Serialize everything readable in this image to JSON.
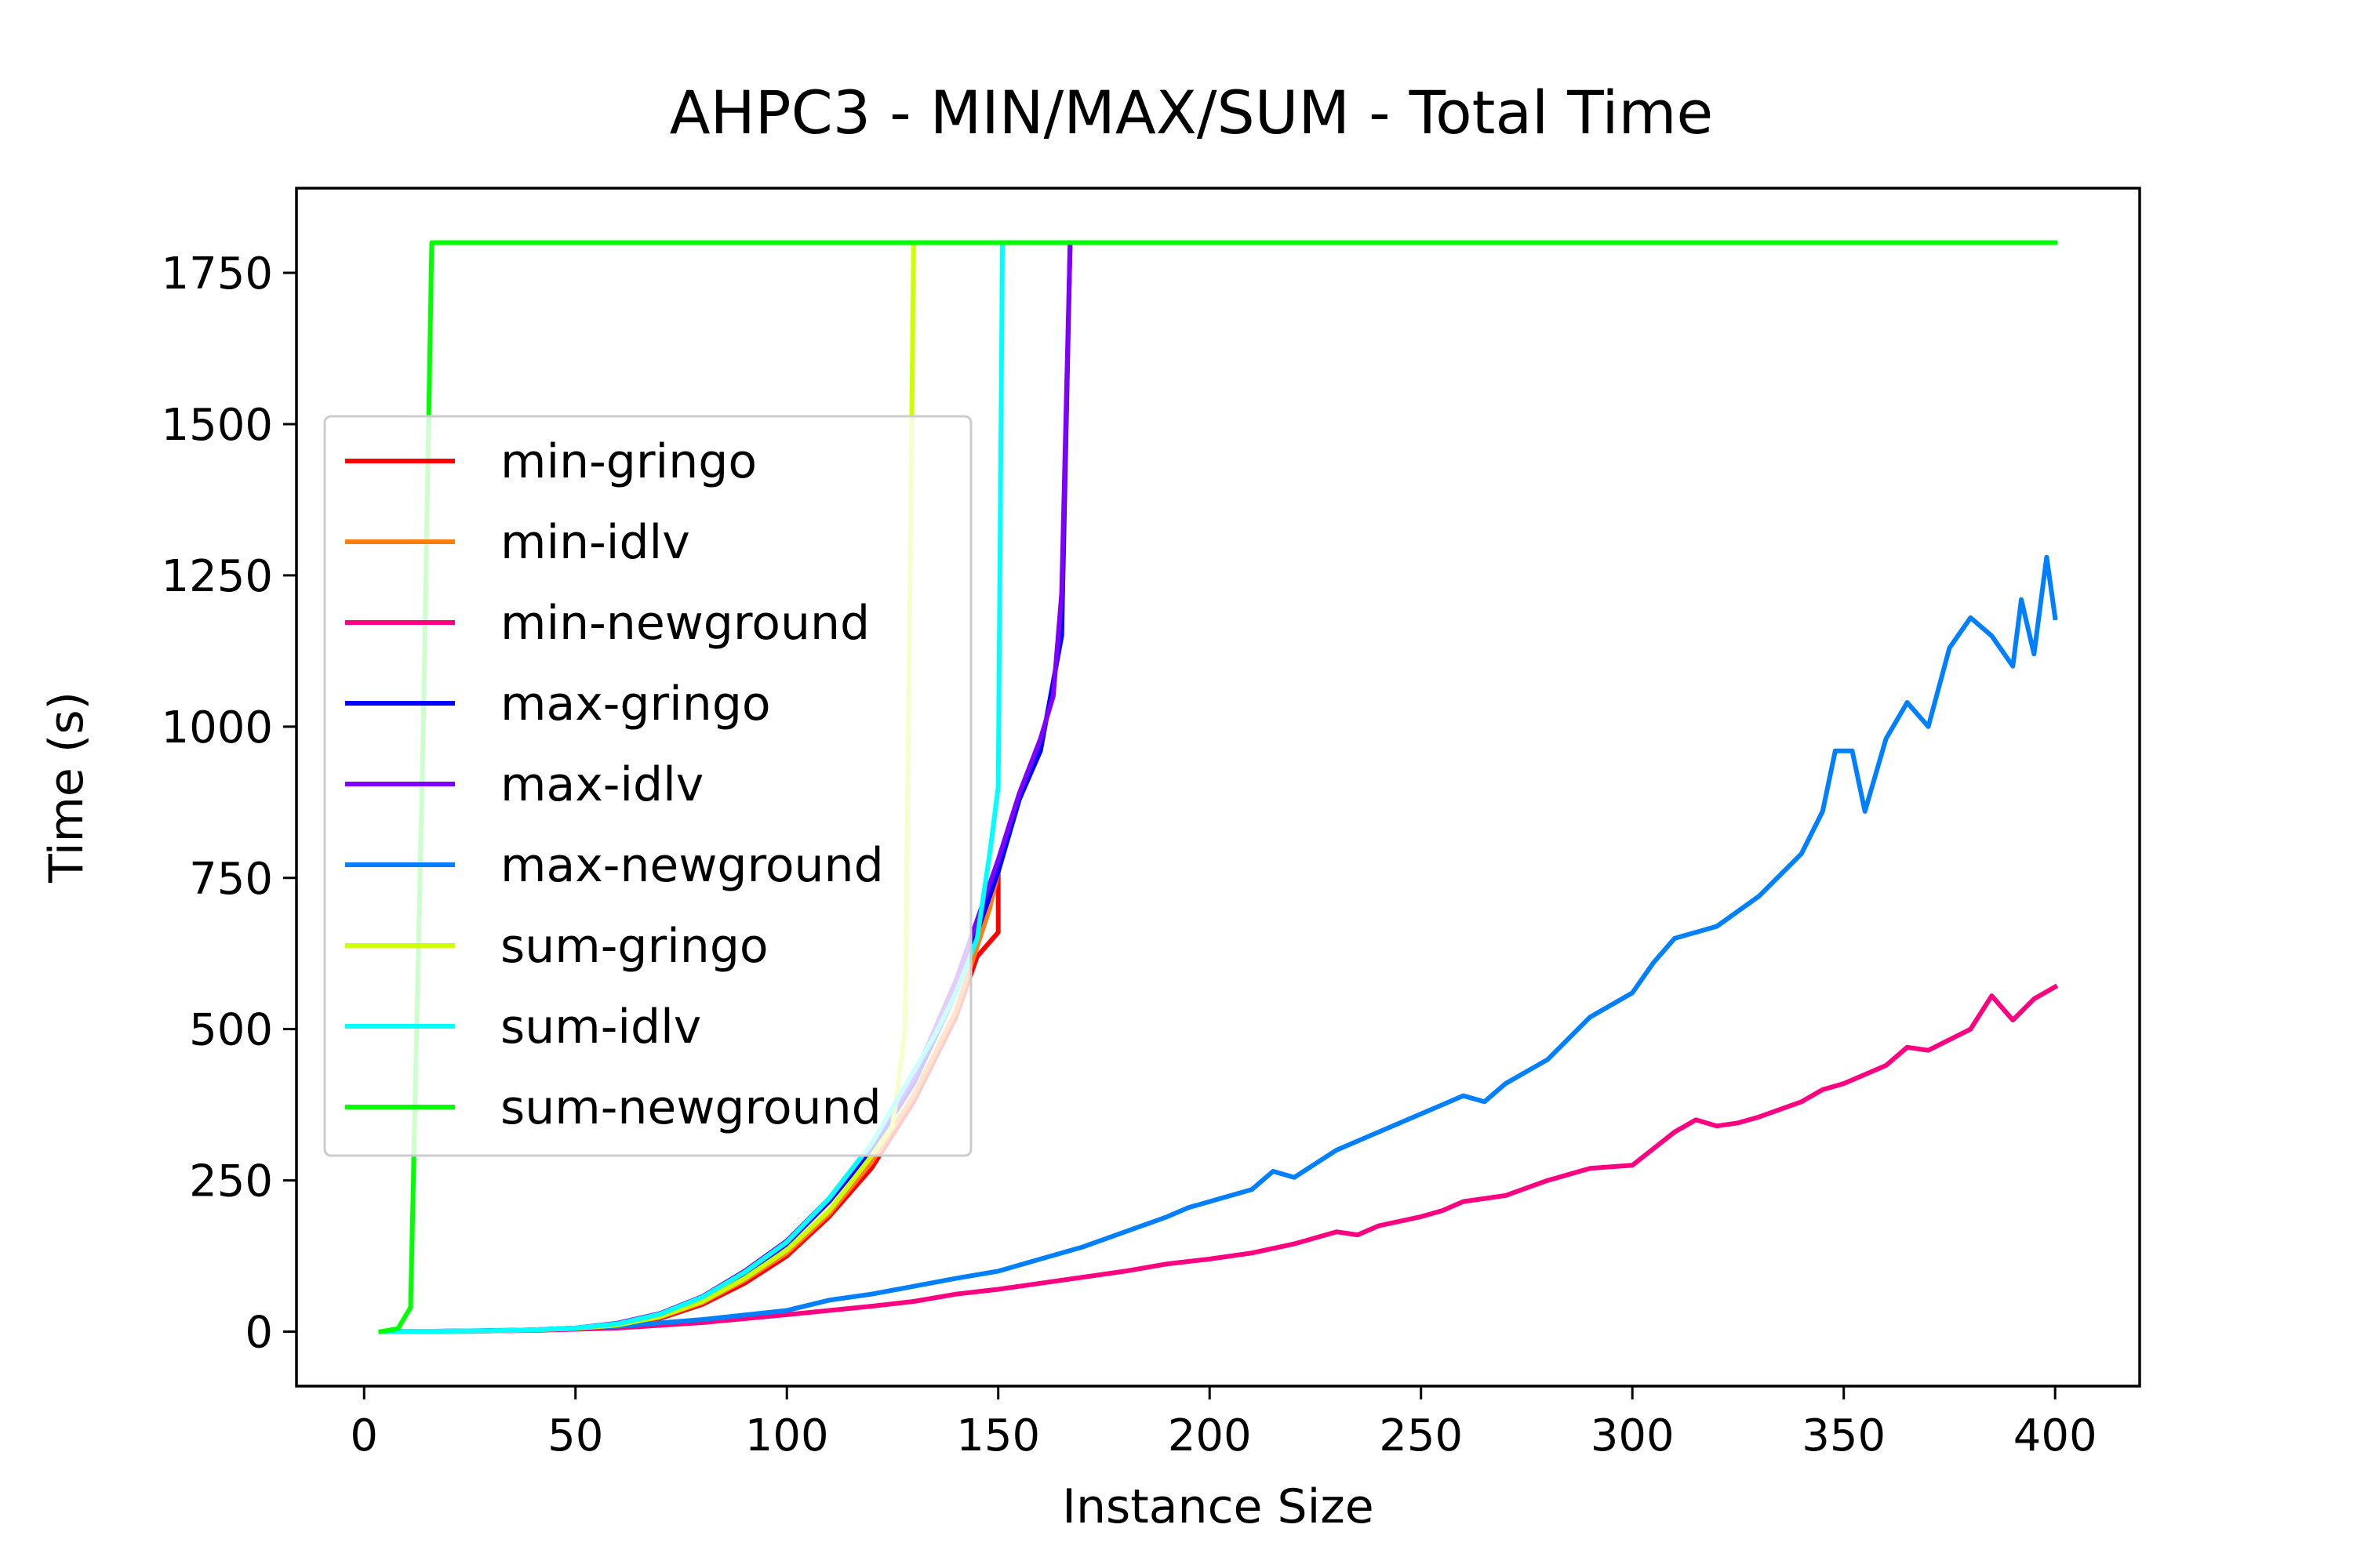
{
  "chart_data": {
    "type": "line",
    "title": "AHPC3 - MIN/MAX/SUM - Total Time",
    "xlabel": "Instance Size",
    "ylabel": "Time (s)",
    "xlim": [
      -16,
      420
    ],
    "ylim": [
      -90,
      1890
    ],
    "xticks": [
      0,
      50,
      100,
      150,
      200,
      250,
      300,
      350,
      400
    ],
    "yticks": [
      0,
      250,
      500,
      750,
      1000,
      1250,
      1500,
      1750
    ],
    "grid": false,
    "legend_position": "center-left",
    "series": [
      {
        "name": "min-gringo",
        "color": "#ff0000",
        "points": [
          [
            4,
            0
          ],
          [
            10,
            0.3
          ],
          [
            20,
            0.6
          ],
          [
            30,
            1.2
          ],
          [
            40,
            2.5
          ],
          [
            50,
            5
          ],
          [
            60,
            10
          ],
          [
            70,
            22
          ],
          [
            80,
            45
          ],
          [
            90,
            80
          ],
          [
            100,
            125
          ],
          [
            110,
            190
          ],
          [
            120,
            270
          ],
          [
            130,
            380
          ],
          [
            140,
            520
          ],
          [
            145,
            620
          ],
          [
            150,
            660
          ],
          [
            150,
            760
          ]
        ]
      },
      {
        "name": "min-idlv",
        "color": "#ff7f0e",
        "points": [
          [
            4,
            0
          ],
          [
            10,
            0.3
          ],
          [
            20,
            0.6
          ],
          [
            30,
            1.2
          ],
          [
            40,
            2.5
          ],
          [
            50,
            5
          ],
          [
            60,
            10
          ],
          [
            70,
            24
          ],
          [
            80,
            48
          ],
          [
            90,
            85
          ],
          [
            100,
            130
          ],
          [
            110,
            195
          ],
          [
            120,
            280
          ],
          [
            130,
            390
          ],
          [
            140,
            530
          ],
          [
            148,
            700
          ],
          [
            150,
            760
          ]
        ]
      },
      {
        "name": "min-newground",
        "color": "#ff0080",
        "points": [
          [
            4,
            0
          ],
          [
            20,
            0.5
          ],
          [
            40,
            2
          ],
          [
            60,
            6
          ],
          [
            80,
            15
          ],
          [
            100,
            28
          ],
          [
            120,
            42
          ],
          [
            130,
            50
          ],
          [
            140,
            62
          ],
          [
            150,
            70
          ],
          [
            160,
            80
          ],
          [
            170,
            90
          ],
          [
            180,
            100
          ],
          [
            190,
            112
          ],
          [
            200,
            120
          ],
          [
            210,
            130
          ],
          [
            220,
            145
          ],
          [
            230,
            165
          ],
          [
            235,
            160
          ],
          [
            240,
            175
          ],
          [
            250,
            190
          ],
          [
            255,
            200
          ],
          [
            260,
            215
          ],
          [
            270,
            225
          ],
          [
            280,
            250
          ],
          [
            290,
            270
          ],
          [
            300,
            275
          ],
          [
            310,
            330
          ],
          [
            315,
            350
          ],
          [
            320,
            340
          ],
          [
            325,
            345
          ],
          [
            330,
            355
          ],
          [
            340,
            380
          ],
          [
            345,
            400
          ],
          [
            350,
            410
          ],
          [
            360,
            440
          ],
          [
            365,
            470
          ],
          [
            370,
            465
          ],
          [
            380,
            500
          ],
          [
            385,
            555
          ],
          [
            390,
            515
          ],
          [
            395,
            550
          ],
          [
            400,
            570
          ]
        ]
      },
      {
        "name": "max-gringo",
        "color": "#0000ff",
        "points": [
          [
            4,
            0
          ],
          [
            10,
            0.3
          ],
          [
            20,
            0.8
          ],
          [
            30,
            1.5
          ],
          [
            40,
            3
          ],
          [
            50,
            6
          ],
          [
            60,
            12
          ],
          [
            70,
            28
          ],
          [
            80,
            55
          ],
          [
            90,
            95
          ],
          [
            100,
            145
          ],
          [
            110,
            215
          ],
          [
            120,
            300
          ],
          [
            130,
            410
          ],
          [
            140,
            560
          ],
          [
            150,
            760
          ],
          [
            155,
            880
          ],
          [
            160,
            960
          ],
          [
            165,
            1150
          ],
          [
            167,
            1800
          ]
        ]
      },
      {
        "name": "max-idlv",
        "color": "#7f00ff",
        "points": [
          [
            4,
            0
          ],
          [
            10,
            0.3
          ],
          [
            20,
            0.8
          ],
          [
            30,
            1.5
          ],
          [
            40,
            3
          ],
          [
            50,
            6
          ],
          [
            60,
            14
          ],
          [
            70,
            30
          ],
          [
            80,
            58
          ],
          [
            90,
            100
          ],
          [
            100,
            150
          ],
          [
            110,
            220
          ],
          [
            120,
            310
          ],
          [
            130,
            420
          ],
          [
            140,
            580
          ],
          [
            150,
            780
          ],
          [
            155,
            890
          ],
          [
            160,
            980
          ],
          [
            163,
            1050
          ],
          [
            165,
            1220
          ],
          [
            167,
            1800
          ]
        ]
      },
      {
        "name": "max-newground",
        "color": "#007fff",
        "points": [
          [
            4,
            0
          ],
          [
            20,
            0.8
          ],
          [
            40,
            3
          ],
          [
            60,
            9
          ],
          [
            80,
            20
          ],
          [
            100,
            35
          ],
          [
            110,
            52
          ],
          [
            120,
            62
          ],
          [
            130,
            75
          ],
          [
            140,
            88
          ],
          [
            150,
            100
          ],
          [
            160,
            120
          ],
          [
            170,
            140
          ],
          [
            180,
            165
          ],
          [
            190,
            190
          ],
          [
            195,
            205
          ],
          [
            200,
            215
          ],
          [
            210,
            235
          ],
          [
            215,
            265
          ],
          [
            220,
            255
          ],
          [
            230,
            300
          ],
          [
            240,
            330
          ],
          [
            245,
            345
          ],
          [
            250,
            360
          ],
          [
            255,
            375
          ],
          [
            260,
            390
          ],
          [
            265,
            380
          ],
          [
            270,
            410
          ],
          [
            280,
            450
          ],
          [
            290,
            520
          ],
          [
            300,
            560
          ],
          [
            305,
            610
          ],
          [
            310,
            650
          ],
          [
            320,
            670
          ],
          [
            330,
            720
          ],
          [
            340,
            790
          ],
          [
            345,
            860
          ],
          [
            348,
            960
          ],
          [
            352,
            960
          ],
          [
            355,
            860
          ],
          [
            360,
            980
          ],
          [
            365,
            1040
          ],
          [
            370,
            1000
          ],
          [
            375,
            1130
          ],
          [
            380,
            1180
          ],
          [
            385,
            1150
          ],
          [
            390,
            1100
          ],
          [
            392,
            1210
          ],
          [
            395,
            1120
          ],
          [
            398,
            1280
          ],
          [
            400,
            1180
          ]
        ]
      },
      {
        "name": "sum-gringo",
        "color": "#ccff00",
        "points": [
          [
            4,
            0
          ],
          [
            10,
            0.3
          ],
          [
            20,
            0.7
          ],
          [
            30,
            1.4
          ],
          [
            40,
            2.8
          ],
          [
            50,
            5.5
          ],
          [
            60,
            11
          ],
          [
            70,
            25
          ],
          [
            80,
            50
          ],
          [
            90,
            88
          ],
          [
            100,
            135
          ],
          [
            110,
            200
          ],
          [
            120,
            290
          ],
          [
            125,
            340
          ],
          [
            128,
            500
          ],
          [
            130,
            1800
          ]
        ]
      },
      {
        "name": "sum-idlv",
        "color": "#00ffff",
        "points": [
          [
            4,
            0
          ],
          [
            10,
            0.3
          ],
          [
            20,
            0.8
          ],
          [
            30,
            1.5
          ],
          [
            40,
            3
          ],
          [
            50,
            6
          ],
          [
            60,
            13
          ],
          [
            70,
            29
          ],
          [
            80,
            57
          ],
          [
            90,
            98
          ],
          [
            100,
            148
          ],
          [
            110,
            220
          ],
          [
            120,
            310
          ],
          [
            130,
            430
          ],
          [
            135,
            490
          ],
          [
            140,
            560
          ],
          [
            145,
            650
          ],
          [
            148,
            790
          ],
          [
            150,
            900
          ],
          [
            151,
            1800
          ]
        ]
      },
      {
        "name": "sum-newground",
        "color": "#00ff00",
        "points": [
          [
            4,
            0
          ],
          [
            8,
            5
          ],
          [
            11,
            40
          ],
          [
            14,
            1000
          ],
          [
            16,
            1800
          ],
          [
            400,
            1800
          ]
        ]
      }
    ]
  }
}
